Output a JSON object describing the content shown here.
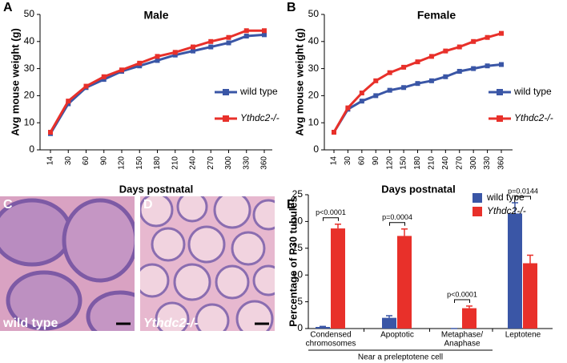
{
  "panel_labels": [
    "A",
    "B",
    "C",
    "D",
    "E"
  ],
  "image_captions": [
    "wild type",
    "Ythdc2-/-"
  ],
  "chart_data": [
    {
      "type": "line",
      "title": "Male",
      "x_label": "Days postnatal",
      "y_label": "Avg mouse weight (g)",
      "categories": [
        "14",
        "30",
        "60",
        "90",
        "120",
        "150",
        "180",
        "210",
        "240",
        "270",
        "300",
        "330",
        "360"
      ],
      "ylim": [
        0,
        50
      ],
      "yticks": [
        0,
        10,
        20,
        30,
        40,
        50
      ],
      "series": [
        {
          "name": "wild type",
          "color": "#3a56a6",
          "values": [
            6,
            17,
            23,
            26,
            29,
            31,
            33,
            35,
            36.5,
            38,
            39.5,
            42,
            42.5
          ]
        },
        {
          "name": "Ythdc2-/-",
          "color": "#e8302a",
          "values": [
            6.5,
            18,
            23.5,
            27,
            29.5,
            32,
            34.5,
            36,
            38,
            40,
            41.5,
            44,
            44
          ]
        }
      ]
    },
    {
      "type": "line",
      "title": "Female",
      "x_label": "Days postnatal",
      "y_label": "Avg mouse weight (g)",
      "categories": [
        "14",
        "30",
        "60",
        "90",
        "120",
        "150",
        "180",
        "210",
        "240",
        "270",
        "300",
        "330",
        "360"
      ],
      "ylim": [
        0,
        50
      ],
      "yticks": [
        0,
        10,
        20,
        30,
        40,
        50
      ],
      "series": [
        {
          "name": "wild type",
          "color": "#3a56a6",
          "values": [
            6.5,
            15,
            18,
            20,
            22,
            23,
            24.5,
            25.5,
            27,
            29,
            30,
            31,
            31.5
          ]
        },
        {
          "name": "Ythdc2-/-",
          "color": "#e8302a",
          "values": [
            6.5,
            15.5,
            21,
            25.5,
            28.5,
            30.5,
            32.5,
            34.5,
            36.5,
            38,
            40,
            41.5,
            43
          ]
        }
      ]
    },
    {
      "type": "bar",
      "y_label": "Percentage of P30 tubules",
      "group_label": "Near a preleptotene cell",
      "categories": [
        [
          "Condensed",
          "chromosomes"
        ],
        [
          "Apoptotic"
        ],
        [
          "Metaphase/",
          "Anaphase"
        ],
        [
          "Leptotene"
        ]
      ],
      "annotations": [
        "p<0.0001",
        "p=0.0004",
        "p<0.0001",
        "p=0.0144"
      ],
      "ylim": [
        0,
        25
      ],
      "yticks": [
        0,
        5,
        10,
        15,
        20,
        25
      ],
      "legend": "upper right",
      "series": [
        {
          "name": "wild type",
          "color": "#3a56a6",
          "values": [
            0.3,
            2,
            0,
            21.5
          ],
          "errors": [
            0.1,
            0.4,
            0,
            2
          ]
        },
        {
          "name": "Ythdc2-/-",
          "color": "#e8302a",
          "values": [
            18.7,
            17.3,
            3.8,
            12.2
          ],
          "errors": [
            0.8,
            1.3,
            0.4,
            1.5
          ]
        }
      ]
    }
  ]
}
